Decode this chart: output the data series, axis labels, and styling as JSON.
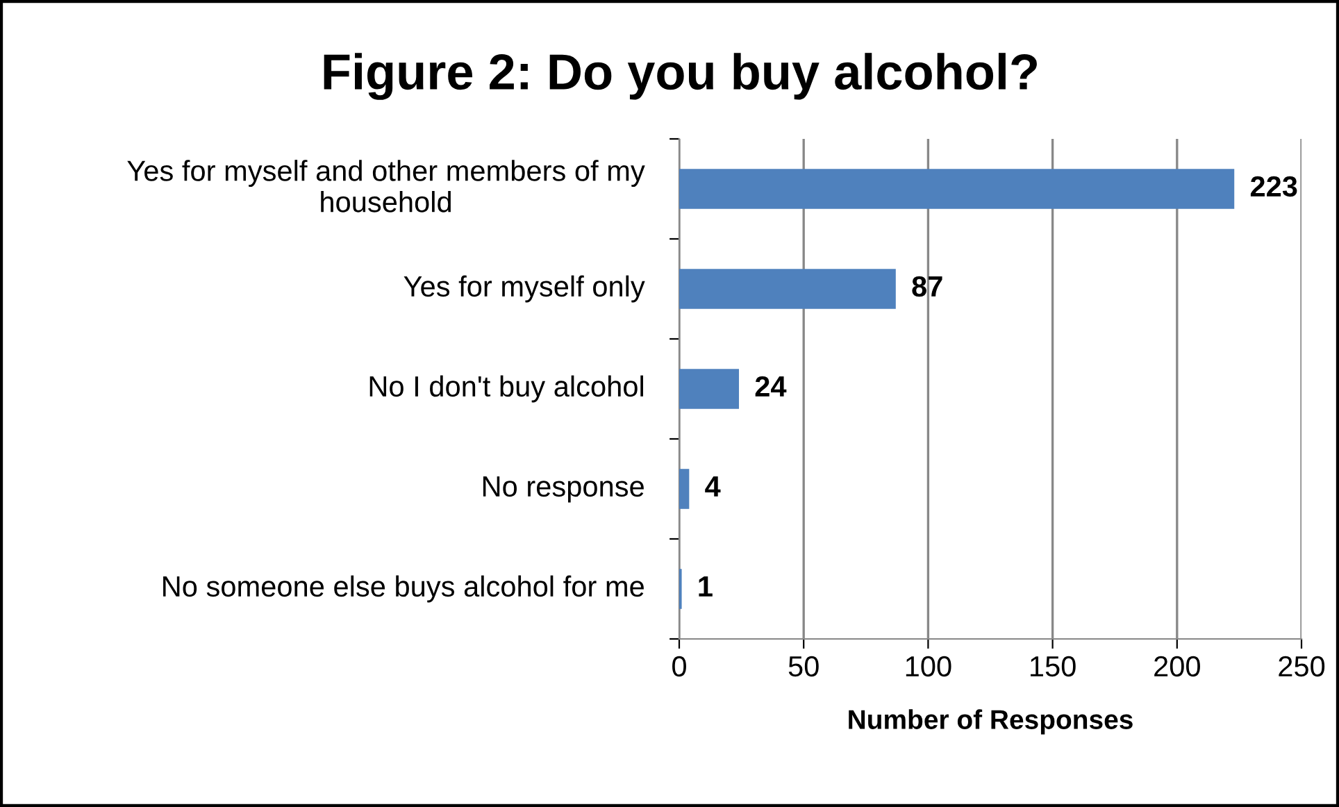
{
  "chart_data": {
    "type": "bar",
    "orientation": "horizontal",
    "title": "Figure 2: Do you buy alcohol?",
    "xlabel": "Number of Responses",
    "categories": [
      "Yes for myself and other members of my household",
      "Yes for myself only",
      "No I don't buy alcohol",
      "No response",
      "No someone else buys alcohol for me"
    ],
    "values": [
      223,
      87,
      24,
      4,
      1
    ],
    "color": "#4f81bd",
    "data_labels": true,
    "xlim": [
      0,
      250
    ],
    "xticks": [
      0,
      50,
      100,
      150,
      200,
      250
    ],
    "grid": "x",
    "legend": false
  }
}
